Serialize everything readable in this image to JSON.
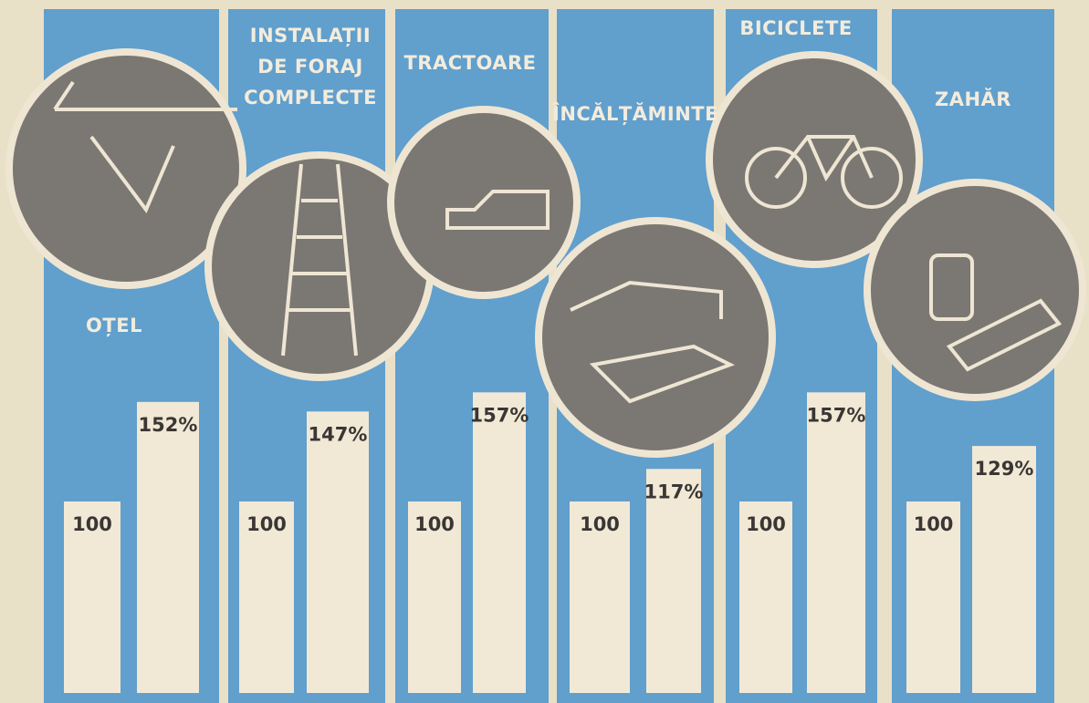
{
  "chart_data": {
    "type": "bar",
    "categories": [
      "OȚEL",
      "INSTALAȚII DE FORAJ COMPLECTE",
      "TRACTOARE",
      "ÎNCĂLȚĂMINTE",
      "BICICLETE",
      "ZAHĂR"
    ],
    "series": [
      {
        "color": "#f1e9d6",
        "values": [
          100,
          100,
          100,
          100,
          100,
          100
        ]
      },
      {
        "color": "#f1e9d6",
        "values": [
          152,
          147,
          157,
          117,
          157,
          129
        ],
        "value_labels": [
          "152%",
          "147%",
          "157%",
          "117%",
          "157%",
          "129%"
        ]
      }
    ],
    "panel_color": "#619fcd"
  }
}
